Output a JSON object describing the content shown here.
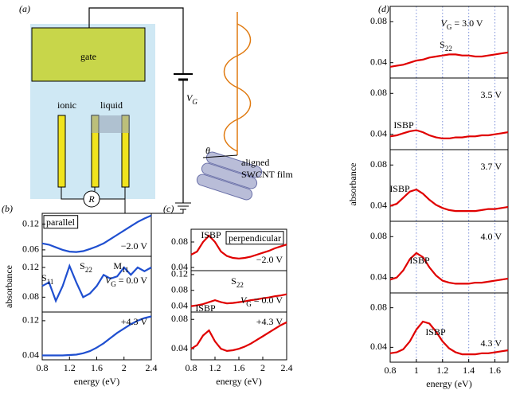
{
  "diagram": {
    "label": "(a)",
    "gate": "gate",
    "ionic": "ionic",
    "liquid": "liquid",
    "voltage": "V",
    "voltage_sub": "G",
    "resistor": "R",
    "angle": "θ",
    "film_line1": "aligned",
    "film_line2": "SWCNT film"
  },
  "chart_data": [
    {
      "type": "line",
      "label": "(b)",
      "xlabel": "energy (eV)",
      "ylabel": "absorbance",
      "xlim": [
        0.8,
        2.4
      ],
      "xticks": [
        0.8,
        1.2,
        1.6,
        2.0,
        2.4
      ],
      "x": [
        0.8,
        0.9,
        1.0,
        1.1,
        1.2,
        1.3,
        1.4,
        1.5,
        1.6,
        1.7,
        1.8,
        1.9,
        2.0,
        2.1,
        2.2,
        2.3,
        2.4
      ],
      "panels": [
        {
          "ylim": [
            0.045,
            0.145
          ],
          "yticks": [
            0.06,
            0.12
          ],
          "series": [
            {
              "color": "#1f4fd0",
              "values": [
                0.075,
                0.072,
                0.066,
                0.06,
                0.056,
                0.055,
                0.057,
                0.062,
                0.068,
                0.075,
                0.085,
                0.095,
                0.105,
                0.115,
                0.125,
                0.133,
                0.14
              ]
            }
          ],
          "annotations": [
            {
              "text": "parallel",
              "box": true
            },
            {
              "text": "−2.0 V"
            }
          ]
        },
        {
          "ylim": [
            0.06,
            0.135
          ],
          "yticks": [
            0.08,
            0.12
          ],
          "series": [
            {
              "color": "#1f4fd0",
              "values": [
                0.095,
                0.1,
                0.075,
                0.095,
                0.122,
                0.1,
                0.08,
                0.085,
                0.095,
                0.11,
                0.105,
                0.108,
                0.12,
                0.11,
                0.12,
                0.115,
                0.12
              ]
            }
          ],
          "annotations": [
            {
              "text": "S",
              "sub": "11"
            },
            {
              "text": "S",
              "sub": "22"
            },
            {
              "text": "M",
              "sub": "11"
            },
            {
              "text": "V",
              "sub": "G",
              "after": " = 0.0 V"
            }
          ]
        },
        {
          "ylim": [
            0.03,
            0.14
          ],
          "yticks": [
            0.04,
            0.12
          ],
          "series": [
            {
              "color": "#1f4fd0",
              "values": [
                0.04,
                0.04,
                0.04,
                0.04,
                0.041,
                0.042,
                0.045,
                0.05,
                0.058,
                0.068,
                0.08,
                0.092,
                0.102,
                0.112,
                0.12,
                0.126,
                0.13
              ]
            }
          ],
          "annotations": [
            {
              "text": "+4.3 V"
            }
          ]
        }
      ]
    },
    {
      "type": "line",
      "label": "(c)",
      "xlabel": "energy (eV)",
      "xlim": [
        0.8,
        2.4
      ],
      "xticks": [
        0.8,
        1.2,
        1.6,
        2.0,
        2.4
      ],
      "x": [
        0.8,
        0.9,
        1.0,
        1.1,
        1.2,
        1.3,
        1.4,
        1.5,
        1.6,
        1.7,
        1.8,
        1.9,
        2.0,
        2.1,
        2.2,
        2.3,
        2.4
      ],
      "panels": [
        {
          "ylim": [
            0.035,
            0.1
          ],
          "yticks": [
            0.04,
            0.08
          ],
          "series": [
            {
              "color": "#e00000",
              "values": [
                0.06,
                0.065,
                0.08,
                0.09,
                0.08,
                0.065,
                0.058,
                0.055,
                0.054,
                0.055,
                0.057,
                0.06,
                0.063,
                0.066,
                0.07,
                0.073,
                0.076
              ]
            }
          ],
          "annotations": [
            {
              "text": "ISBP"
            },
            {
              "text": "perpendicular",
              "box": true
            },
            {
              "text": "−2.0 V"
            }
          ]
        },
        {
          "ylim": [
            0.025,
            0.13
          ],
          "yticks": [
            0.04,
            0.08,
            0.12
          ],
          "series": [
            {
              "color": "#e00000",
              "values": [
                0.04,
                0.042,
                0.045,
                0.05,
                0.055,
                0.05,
                0.047,
                0.048,
                0.05,
                0.052,
                0.055,
                0.057,
                0.06,
                0.062,
                0.065,
                0.067,
                0.07
              ]
            }
          ],
          "annotations": [
            {
              "text": "S",
              "sub": "22"
            },
            {
              "text": "V",
              "sub": "G",
              "after": " = 0.0 V"
            }
          ]
        },
        {
          "ylim": [
            0.025,
            0.09
          ],
          "yticks": [
            0.04,
            0.08
          ],
          "series": [
            {
              "color": "#e00000",
              "values": [
                0.04,
                0.045,
                0.058,
                0.065,
                0.05,
                0.04,
                0.037,
                0.038,
                0.04,
                0.043,
                0.047,
                0.052,
                0.057,
                0.062,
                0.067,
                0.072,
                0.076
              ]
            }
          ],
          "annotations": [
            {
              "text": "ISBP"
            },
            {
              "text": "+4.3 V"
            }
          ]
        }
      ]
    },
    {
      "type": "line",
      "label": "(d)",
      "xlabel": "energy (eV)",
      "ylabel": "absorbance",
      "xlim": [
        0.8,
        1.7
      ],
      "xticks": [
        0.8,
        1.0,
        1.2,
        1.4,
        1.6
      ],
      "xgrid": true,
      "x": [
        0.8,
        0.85,
        0.9,
        0.95,
        1.0,
        1.05,
        1.1,
        1.15,
        1.2,
        1.25,
        1.3,
        1.35,
        1.4,
        1.45,
        1.5,
        1.55,
        1.6,
        1.65,
        1.7
      ],
      "panels": [
        {
          "ylim": [
            0.025,
            0.095
          ],
          "yticks": [
            0.04,
            0.08
          ],
          "series": [
            {
              "color": "#e00000",
              "values": [
                0.036,
                0.037,
                0.038,
                0.04,
                0.042,
                0.043,
                0.045,
                0.046,
                0.047,
                0.048,
                0.048,
                0.047,
                0.047,
                0.046,
                0.046,
                0.047,
                0.048,
                0.049,
                0.05
              ]
            }
          ],
          "annotations": [
            {
              "text": "V",
              "sub": "G",
              "after": " = 3.0 V"
            },
            {
              "text": "S",
              "sub": "22"
            }
          ]
        },
        {
          "ylim": [
            0.025,
            0.095
          ],
          "yticks": [
            0.04,
            0.08
          ],
          "series": [
            {
              "color": "#e00000",
              "values": [
                0.038,
                0.039,
                0.041,
                0.043,
                0.044,
                0.042,
                0.039,
                0.037,
                0.036,
                0.036,
                0.037,
                0.037,
                0.038,
                0.038,
                0.039,
                0.039,
                0.04,
                0.041,
                0.042
              ]
            }
          ],
          "annotations": [
            {
              "text": "ISBP"
            },
            {
              "text": "3.5 V"
            }
          ]
        },
        {
          "ylim": [
            0.025,
            0.095
          ],
          "yticks": [
            0.04,
            0.08
          ],
          "series": [
            {
              "color": "#e00000",
              "values": [
                0.04,
                0.042,
                0.048,
                0.054,
                0.056,
                0.052,
                0.046,
                0.041,
                0.038,
                0.036,
                0.035,
                0.035,
                0.035,
                0.035,
                0.036,
                0.037,
                0.037,
                0.038,
                0.039
              ]
            }
          ],
          "annotations": [
            {
              "text": "ISBP"
            },
            {
              "text": "3.7 V"
            }
          ]
        },
        {
          "ylim": [
            0.025,
            0.095
          ],
          "yticks": [
            0.04,
            0.08
          ],
          "series": [
            {
              "color": "#e00000",
              "values": [
                0.038,
                0.04,
                0.047,
                0.058,
                0.064,
                0.06,
                0.05,
                0.042,
                0.037,
                0.035,
                0.034,
                0.034,
                0.034,
                0.035,
                0.035,
                0.036,
                0.037,
                0.038,
                0.039
              ]
            }
          ],
          "annotations": [
            {
              "text": "ISBP"
            },
            {
              "text": "4.0 V"
            }
          ]
        },
        {
          "ylim": [
            0.025,
            0.095
          ],
          "yticks": [
            0.04,
            0.08
          ],
          "series": [
            {
              "color": "#e00000",
              "values": [
                0.034,
                0.035,
                0.038,
                0.046,
                0.058,
                0.066,
                0.064,
                0.056,
                0.046,
                0.039,
                0.035,
                0.033,
                0.033,
                0.033,
                0.034,
                0.034,
                0.035,
                0.036,
                0.037
              ]
            }
          ],
          "annotations": [
            {
              "text": "ISBP"
            },
            {
              "text": "4.3 V"
            }
          ]
        }
      ]
    }
  ]
}
